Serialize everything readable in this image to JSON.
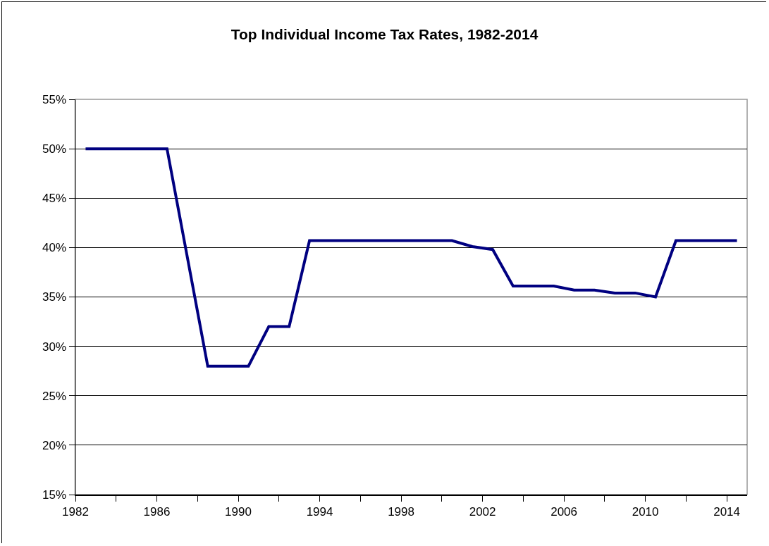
{
  "chart_data": {
    "type": "line",
    "title": "Top Individual Income Tax Rates, 1982-2014",
    "x": [
      1982.5,
      1983.5,
      1984.5,
      1985.5,
      1986.5,
      1987.5,
      1988.5,
      1989.5,
      1990.5,
      1991.5,
      1992.5,
      1993.5,
      1994.5,
      1995.5,
      1996.5,
      1997.5,
      1998.5,
      1999.5,
      2000.5,
      2001.5,
      2002.5,
      2003.5,
      2004.5,
      2005.5,
      2006.5,
      2007.5,
      2008.5,
      2009.5,
      2010.5,
      2011.5,
      2012.5,
      2013.5,
      2014.5
    ],
    "series": [
      {
        "color": "#000080",
        "values": [
          50,
          50,
          50,
          50,
          50,
          39,
          28,
          28,
          28,
          32,
          32,
          40.7,
          40.7,
          40.7,
          40.7,
          40.7,
          40.7,
          40.7,
          40.7,
          40.1,
          39.8,
          36.1,
          36.1,
          36.1,
          35.7,
          35.7,
          35.4,
          35.4,
          35.0,
          40.7,
          40.7,
          40.7,
          40.7
        ]
      }
    ],
    "xlim": [
      1982,
      2015
    ],
    "xticks": [
      1982,
      {
        "value": 1984,
        "label": null
      },
      1986,
      {
        "value": 1988,
        "label": null
      },
      1990,
      {
        "value": 1992,
        "label": null
      },
      1994,
      {
        "value": 1996,
        "label": null
      },
      1998,
      {
        "value": 2000,
        "label": null
      },
      2002,
      {
        "value": 2004,
        "label": null
      },
      2006,
      {
        "value": 2008,
        "label": null
      },
      2010,
      {
        "value": 2012,
        "label": null
      },
      2014
    ],
    "ylim": [
      15,
      55
    ],
    "yticks": [
      {
        "value": 15,
        "label": "15%"
      },
      {
        "value": 20,
        "label": "20%"
      },
      {
        "value": 25,
        "label": "25%"
      },
      {
        "value": 30,
        "label": "30%"
      },
      {
        "value": 35,
        "label": "35%"
      },
      {
        "value": 40,
        "label": "40%"
      },
      {
        "value": 45,
        "label": "45%"
      },
      {
        "value": 50,
        "label": "50%"
      },
      {
        "value": 55,
        "label": "55%"
      }
    ],
    "grid": "y",
    "marker": "none",
    "line_style": "solid"
  }
}
